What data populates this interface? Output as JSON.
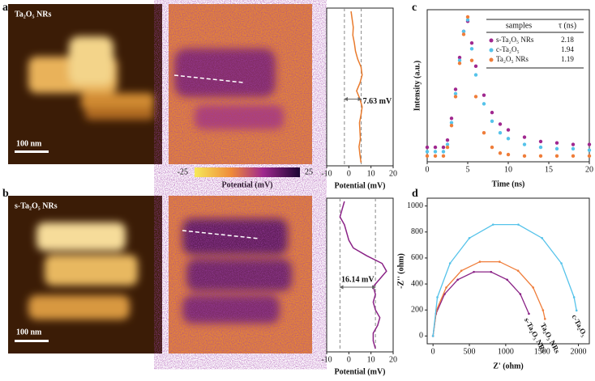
{
  "panel_labels": [
    "a",
    "b",
    "c",
    "d"
  ],
  "images": {
    "a_label": "Ta₂O₅ NRs",
    "b_label": "s-Ta₂O₅ NRs",
    "scale_bars": [
      "100 nm",
      "100 nm"
    ]
  },
  "colorbar": {
    "ticks": [
      -25,
      25
    ],
    "label": "Potential (mV)"
  },
  "legend_table": {
    "headers": [
      "samples",
      "τ (ns)"
    ]
  },
  "chart_data": [
    {
      "type": "scatter",
      "xlabel": "Time (ns)",
      "ylabel": "Intensity (a.u.)",
      "xlim": [
        0,
        20
      ],
      "xticks": [
        0,
        5,
        10,
        15,
        20
      ],
      "ylim": [
        0,
        1.05
      ],
      "x": [
        0,
        1,
        2,
        2.5,
        3,
        3.5,
        4,
        4.5,
        5,
        5.5,
        6,
        7,
        8,
        9,
        10,
        12,
        14,
        16,
        18,
        20
      ],
      "series": [
        {
          "name": "s-Ta₂O₅ NRs",
          "color": "#a0288f",
          "tau": 2.18,
          "values": [
            0.1,
            0.1,
            0.1,
            0.15,
            0.3,
            0.5,
            0.72,
            0.9,
            0.97,
            0.82,
            0.66,
            0.46,
            0.34,
            0.26,
            0.22,
            0.17,
            0.14,
            0.13,
            0.12,
            0.12
          ]
        },
        {
          "name": "c-Ta₂O₅",
          "color": "#56c3ea",
          "tau": 1.94,
          "values": [
            0.07,
            0.07,
            0.07,
            0.12,
            0.27,
            0.47,
            0.7,
            0.9,
            0.98,
            0.78,
            0.6,
            0.4,
            0.28,
            0.2,
            0.16,
            0.12,
            0.1,
            0.09,
            0.09,
            0.08
          ]
        },
        {
          "name": "Ta₂O₅ NRs",
          "color": "#ef7d3a",
          "tau": 1.19,
          "values": [
            0.04,
            0.04,
            0.04,
            0.1,
            0.25,
            0.45,
            0.68,
            0.88,
            1.0,
            0.7,
            0.45,
            0.2,
            0.1,
            0.06,
            0.05,
            0.04,
            0.04,
            0.04,
            0.04,
            0.04
          ]
        }
      ]
    },
    {
      "type": "line",
      "xlabel": "Z' (ohm)",
      "ylabel": "-Z'' (ohm)",
      "xlim": [
        -80,
        2150
      ],
      "xticks": [
        0,
        500,
        1000,
        1500,
        2000
      ],
      "ylim": [
        -60,
        1060
      ],
      "yticks": [
        0,
        200,
        400,
        600,
        800,
        1000
      ],
      "series": [
        {
          "name": "s-Ta₂O₅ NRs",
          "color": "#8a2286",
          "x": [
            0,
            41,
            159,
            340,
            562,
            798,
            1020,
            1201,
            1319
          ],
          "values": [
            0,
            171,
            322,
            433,
            493,
            493,
            433,
            322,
            171
          ]
        },
        {
          "name": "Ta₂O₅ NRs",
          "color": "#ef7d3a",
          "x": [
            0,
            47,
            182,
            390,
            644,
            916,
            1170,
            1377,
            1513,
            1540
          ],
          "values": [
            0,
            198,
            373,
            502,
            571,
            571,
            502,
            373,
            198,
            131
          ]
        },
        {
          "name": "c-Ta₂O₅",
          "color": "#56c3ea",
          "x": [
            0,
            60,
            234,
            500,
            826,
            1174,
            1500,
            1766,
            1940,
            1974
          ],
          "values": [
            0,
            298,
            559,
            753,
            857,
            857,
            753,
            559,
            298,
            196
          ]
        }
      ]
    },
    {
      "type": "profile",
      "xlabel": "Potential (mV)",
      "xlim": [
        -10,
        20
      ],
      "xticks": [
        -10,
        0,
        10,
        20
      ],
      "color": "#e97a2c",
      "reference_lines": [
        -2,
        5.6
      ],
      "annotation": "7.63 mV",
      "values": [
        1,
        1.5,
        2,
        1.8,
        2.5,
        3,
        4,
        5.5,
        6,
        5,
        3.5,
        5,
        6,
        5.5,
        4.8,
        5,
        5.2,
        4.6,
        5,
        5.5
      ]
    },
    {
      "type": "profile",
      "xlabel": "Potential (mV)",
      "xlim": [
        -10,
        20
      ],
      "xticks": [
        -10,
        0,
        10,
        20
      ],
      "color": "#8a2286",
      "reference_lines": [
        -4,
        12
      ],
      "annotation": "16.14 mV",
      "values": [
        -2,
        -3,
        -4,
        -2,
        -1,
        0,
        2,
        8,
        15,
        17,
        14,
        11,
        12,
        11,
        12,
        14,
        13,
        11,
        11,
        12
      ]
    }
  ]
}
